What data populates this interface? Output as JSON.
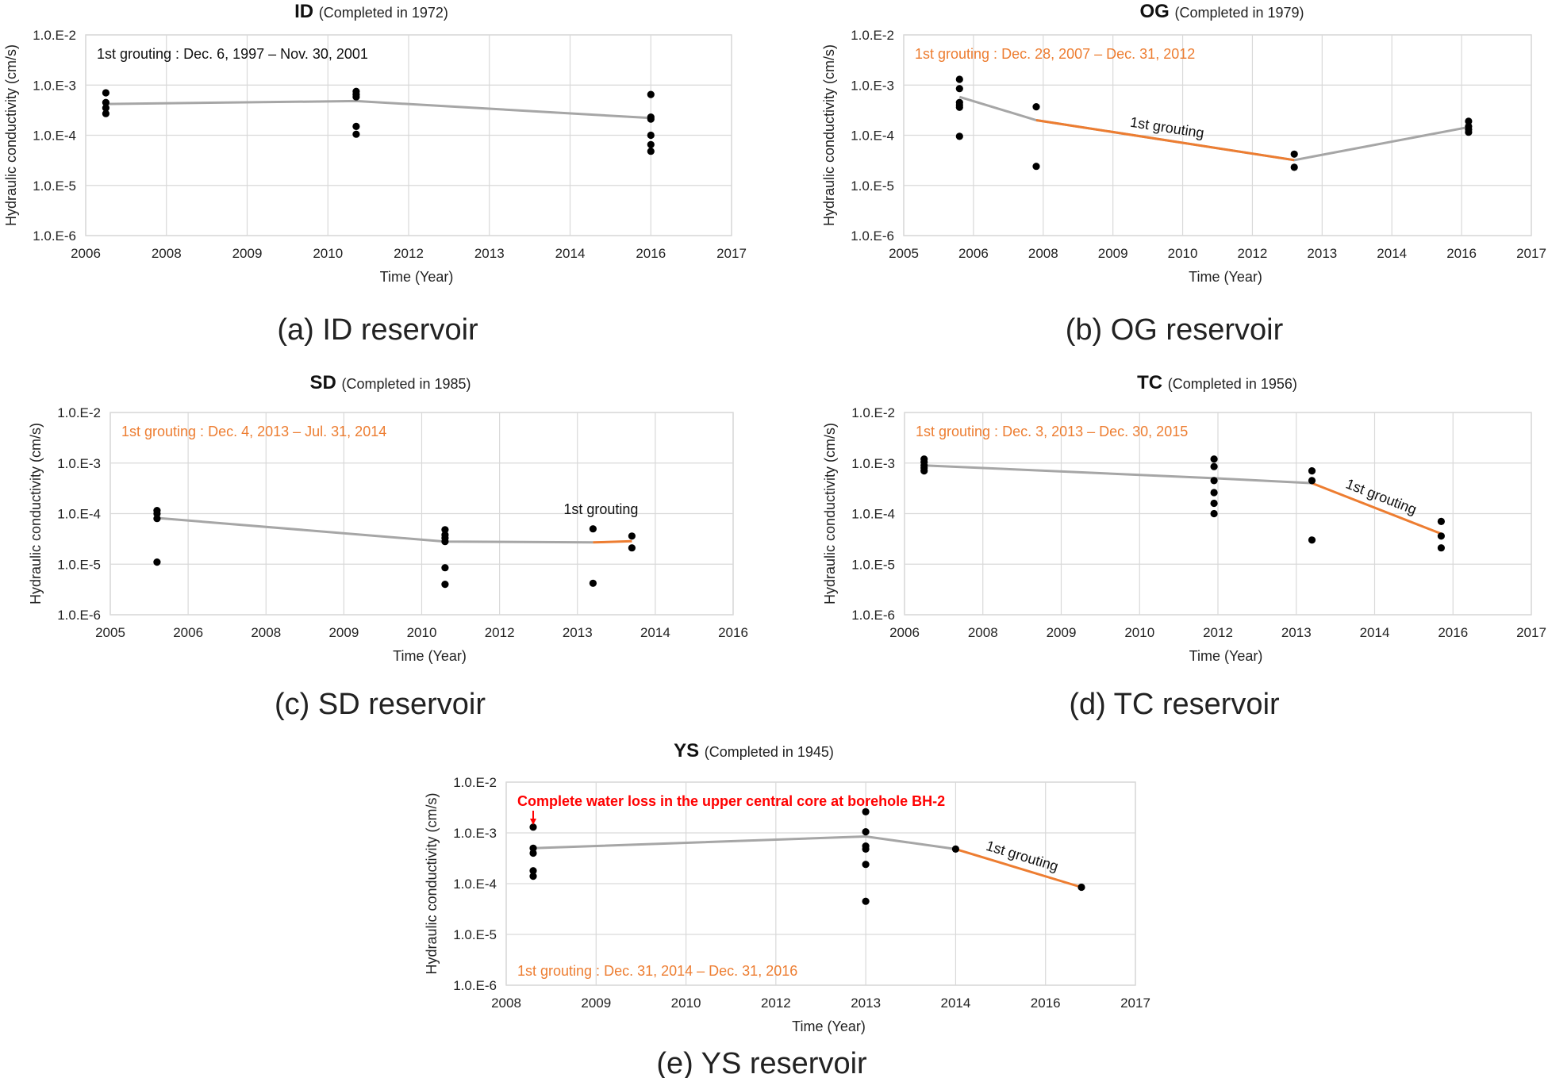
{
  "colors": {
    "trend": "#a6a6a6",
    "grouting": "#ed7d31",
    "points": "#000000",
    "grid": "#d9d9d9",
    "warning": "#ff0000"
  },
  "chart_data": [
    {
      "type": "scatter",
      "title": "ID",
      "subtitle": "(Completed in 1972)",
      "caption": "(a) ID reservoir",
      "xlabel": "Time (Year)",
      "ylabel": "Hydraulic conductivity (cm/s)",
      "xticks": [
        "2006",
        "2008",
        "2009",
        "2010",
        "2012",
        "2013",
        "2014",
        "2016",
        "2017"
      ],
      "yticks": [
        "1.0.E-2",
        "1.0.E-3",
        "1.0.E-4",
        "1.0.E-5",
        "1.0.E-6"
      ],
      "ylim": [
        1e-06,
        0.01
      ],
      "yscale": "log",
      "grid": true,
      "points": [
        {
          "x": 2006.5,
          "y": 0.0007
        },
        {
          "x": 2006.5,
          "y": 0.00045
        },
        {
          "x": 2006.5,
          "y": 0.00035
        },
        {
          "x": 2006.5,
          "y": 0.00027
        },
        {
          "x": 2010.7,
          "y": 0.00075
        },
        {
          "x": 2010.7,
          "y": 0.00065
        },
        {
          "x": 2010.7,
          "y": 0.00058
        },
        {
          "x": 2010.7,
          "y": 0.00015
        },
        {
          "x": 2010.7,
          "y": 0.000105
        },
        {
          "x": 2016.0,
          "y": 0.00065
        },
        {
          "x": 2016.0,
          "y": 0.00023
        },
        {
          "x": 2016.0,
          "y": 0.00021
        },
        {
          "x": 2016.0,
          "y": 0.0001
        },
        {
          "x": 2016.0,
          "y": 6.5e-05
        },
        {
          "x": 2016.0,
          "y": 4.8e-05
        }
      ],
      "trend": [
        {
          "x": 2006.5,
          "y": 0.00042
        },
        {
          "x": 2010.7,
          "y": 0.00048
        },
        {
          "x": 2016.0,
          "y": 0.00022
        }
      ],
      "grouting_line": [],
      "annotations": [
        {
          "text": "1st grouting : Dec. 6, 1997 – Nov. 30, 2001",
          "style": "black",
          "at": "top-left"
        }
      ]
    },
    {
      "type": "scatter",
      "title": "OG",
      "subtitle": "(Completed in 1979)",
      "caption": "(b) OG reservoir",
      "xlabel": "Time (Year)",
      "ylabel": "Hydraulic conductivity (cm/s)",
      "xticks": [
        "2005",
        "2006",
        "2008",
        "2009",
        "2010",
        "2012",
        "2013",
        "2014",
        "2016",
        "2017"
      ],
      "yticks": [
        "1.0.E-2",
        "1.0.E-3",
        "1.0.E-4",
        "1.0.E-5",
        "1.0.E-6"
      ],
      "ylim": [
        1e-06,
        0.01
      ],
      "yscale": "log",
      "grid": true,
      "points": [
        {
          "x": 2005.8,
          "y": 0.0013
        },
        {
          "x": 2005.8,
          "y": 0.00085
        },
        {
          "x": 2005.8,
          "y": 0.00045
        },
        {
          "x": 2005.8,
          "y": 0.0004
        },
        {
          "x": 2005.8,
          "y": 0.00036
        },
        {
          "x": 2005.8,
          "y": 9.5e-05
        },
        {
          "x": 2007.8,
          "y": 0.00037
        },
        {
          "x": 2007.8,
          "y": 2.4e-05
        },
        {
          "x": 2012.6,
          "y": 4.2e-05
        },
        {
          "x": 2012.6,
          "y": 2.3e-05
        },
        {
          "x": 2016.1,
          "y": 0.00019
        },
        {
          "x": 2016.1,
          "y": 0.00015
        },
        {
          "x": 2016.1,
          "y": 0.00013
        },
        {
          "x": 2016.1,
          "y": 0.000115
        }
      ],
      "trend": [
        {
          "x": 2005.8,
          "y": 0.00058
        },
        {
          "x": 2007.8,
          "y": 0.0002
        },
        {
          "x": 2012.6,
          "y": 3.2e-05
        },
        {
          "x": 2016.1,
          "y": 0.000145
        }
      ],
      "grouting_line": [
        {
          "x": 2007.8,
          "y": 0.0002
        },
        {
          "x": 2012.6,
          "y": 3.2e-05
        }
      ],
      "annotations": [
        {
          "text": "1st grouting : Dec. 28, 2007 – Dec. 31, 2012",
          "style": "orange",
          "at": "top-left"
        },
        {
          "text": "1st grouting",
          "style": "line-label",
          "at": "grouting-line"
        }
      ]
    },
    {
      "type": "scatter",
      "title": "SD",
      "subtitle": "(Completed in 1985)",
      "caption": "(c) SD reservoir",
      "xlabel": "Time (Year)",
      "ylabel": "Hydraulic conductivity (cm/s)",
      "xticks": [
        "2005",
        "2006",
        "2008",
        "2009",
        "2010",
        "2012",
        "2013",
        "2014",
        "2016"
      ],
      "yticks": [
        "1.0.E-2",
        "1.0.E-3",
        "1.0.E-4",
        "1.0.E-5",
        "1.0.E-6"
      ],
      "ylim": [
        1e-06,
        0.01
      ],
      "yscale": "log",
      "grid": true,
      "points": [
        {
          "x": 2005.6,
          "y": 0.000115
        },
        {
          "x": 2005.6,
          "y": 0.0001
        },
        {
          "x": 2005.6,
          "y": 8e-05
        },
        {
          "x": 2005.6,
          "y": 1.1e-05
        },
        {
          "x": 2010.6,
          "y": 4.8e-05
        },
        {
          "x": 2010.6,
          "y": 3.8e-05
        },
        {
          "x": 2010.6,
          "y": 3.3e-05
        },
        {
          "x": 2010.6,
          "y": 2.8e-05
        },
        {
          "x": 2010.6,
          "y": 8.5e-06
        },
        {
          "x": 2010.6,
          "y": 4e-06
        },
        {
          "x": 2013.2,
          "y": 5e-05
        },
        {
          "x": 2013.2,
          "y": 4.2e-06
        },
        {
          "x": 2013.7,
          "y": 3.6e-05
        },
        {
          "x": 2013.7,
          "y": 2.1e-05
        }
      ],
      "trend": [
        {
          "x": 2005.6,
          "y": 8.2e-05
        },
        {
          "x": 2010.6,
          "y": 2.8e-05
        },
        {
          "x": 2013.2,
          "y": 2.7e-05
        }
      ],
      "grouting_line": [
        {
          "x": 2013.2,
          "y": 2.7e-05
        },
        {
          "x": 2013.7,
          "y": 2.85e-05
        }
      ],
      "annotations": [
        {
          "text": "1st grouting : Dec. 4, 2013 – Jul. 31, 2014",
          "style": "orange",
          "at": "top-left"
        },
        {
          "text": "1st grouting",
          "style": "plain",
          "at": "above-grouting"
        }
      ]
    },
    {
      "type": "scatter",
      "title": "TC",
      "subtitle": "(Completed in 1956)",
      "caption": "(d) TC reservoir",
      "xlabel": "Time (Year)",
      "ylabel": "Hydraulic conductivity (cm/s)",
      "xticks": [
        "2006",
        "2008",
        "2009",
        "2010",
        "2012",
        "2013",
        "2014",
        "2016",
        "2017"
      ],
      "yticks": [
        "1.0.E-2",
        "1.0.E-3",
        "1.0.E-4",
        "1.0.E-5",
        "1.0.E-6"
      ],
      "ylim": [
        1e-06,
        0.01
      ],
      "yscale": "log",
      "grid": true,
      "points": [
        {
          "x": 2006.5,
          "y": 0.0012
        },
        {
          "x": 2006.5,
          "y": 0.00105
        },
        {
          "x": 2006.5,
          "y": 0.0009
        },
        {
          "x": 2006.5,
          "y": 0.0008
        },
        {
          "x": 2006.5,
          "y": 0.0007
        },
        {
          "x": 2011.9,
          "y": 0.0012
        },
        {
          "x": 2011.9,
          "y": 0.00085
        },
        {
          "x": 2011.9,
          "y": 0.00045
        },
        {
          "x": 2011.9,
          "y": 0.00026
        },
        {
          "x": 2011.9,
          "y": 0.00016
        },
        {
          "x": 2011.9,
          "y": 0.0001
        },
        {
          "x": 2013.2,
          "y": 0.0007
        },
        {
          "x": 2013.2,
          "y": 0.00045
        },
        {
          "x": 2013.2,
          "y": 3e-05
        },
        {
          "x": 2015.7,
          "y": 7e-05
        },
        {
          "x": 2015.7,
          "y": 3.6e-05
        },
        {
          "x": 2015.7,
          "y": 2.1e-05
        }
      ],
      "trend": [
        {
          "x": 2006.5,
          "y": 0.0009
        },
        {
          "x": 2011.9,
          "y": 0.0005
        },
        {
          "x": 2013.2,
          "y": 0.0004
        }
      ],
      "grouting_line": [
        {
          "x": 2013.2,
          "y": 0.0004
        },
        {
          "x": 2015.7,
          "y": 4e-05
        }
      ],
      "annotations": [
        {
          "text": "1st grouting : Dec. 3, 2013 – Dec. 30, 2015",
          "style": "orange",
          "at": "top-left"
        },
        {
          "text": "1st grouting",
          "style": "line-label",
          "at": "grouting-line"
        }
      ]
    },
    {
      "type": "scatter",
      "title": "YS",
      "subtitle": "(Completed in 1945)",
      "caption": "(e) YS reservoir",
      "xlabel": "Time (Year)",
      "ylabel": "Hydraulic conductivity (cm/s)",
      "xticks": [
        "2008",
        "2009",
        "2010",
        "2012",
        "2013",
        "2014",
        "2016",
        "2017"
      ],
      "yticks": [
        "1.0.E-2",
        "1.0.E-3",
        "1.0.E-4",
        "1.0.E-5",
        "1.0.E-6"
      ],
      "ylim": [
        1e-06,
        0.01
      ],
      "yscale": "log",
      "grid": true,
      "points": [
        {
          "x": 2008.3,
          "y": 0.0013
        },
        {
          "x": 2008.3,
          "y": 0.0005
        },
        {
          "x": 2008.3,
          "y": 0.0004
        },
        {
          "x": 2008.3,
          "y": 0.00018
        },
        {
          "x": 2008.3,
          "y": 0.00014
        },
        {
          "x": 2013.0,
          "y": 0.0026
        },
        {
          "x": 2013.0,
          "y": 0.00105
        },
        {
          "x": 2013.0,
          "y": 0.00055
        },
        {
          "x": 2013.0,
          "y": 0.00048
        },
        {
          "x": 2013.0,
          "y": 0.00024
        },
        {
          "x": 2013.0,
          "y": 4.5e-05
        },
        {
          "x": 2014.0,
          "y": 0.00048
        },
        {
          "x": 2016.4,
          "y": 8.5e-05
        }
      ],
      "trend": [
        {
          "x": 2008.3,
          "y": 0.0005
        },
        {
          "x": 2013.0,
          "y": 0.00085
        },
        {
          "x": 2014.0,
          "y": 0.00048
        }
      ],
      "grouting_line": [
        {
          "x": 2014.0,
          "y": 0.00048
        },
        {
          "x": 2016.4,
          "y": 8.5e-05
        }
      ],
      "annotations": [
        {
          "text": "Complete water loss in the upper central core at borehole BH-2",
          "style": "red",
          "at": "top-left"
        },
        {
          "text": "1st grouting",
          "style": "line-label",
          "at": "grouting-line"
        },
        {
          "text": "1st grouting : Dec. 31, 2014 – Dec. 31, 2016",
          "style": "orange",
          "at": "bottom-left"
        }
      ]
    }
  ]
}
